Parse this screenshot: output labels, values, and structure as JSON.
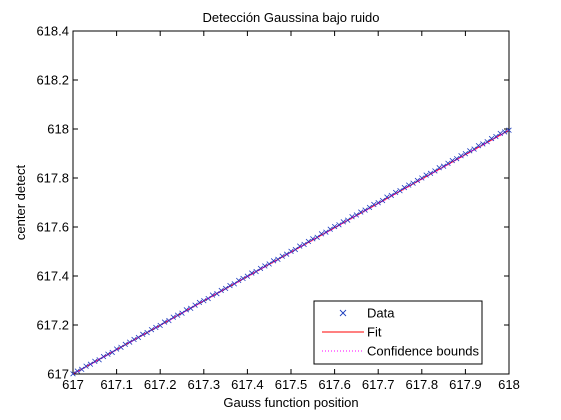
{
  "chart_data": {
    "type": "line",
    "title": "Detección Gaussina bajo ruido",
    "xlabel": "Gauss function position",
    "ylabel": "center detect",
    "xlim": [
      617,
      618
    ],
    "ylim": [
      617,
      618.4
    ],
    "xticks": [
      "617",
      "617.1",
      "617.2",
      "617.3",
      "617.4",
      "617.5",
      "617.6",
      "617.7",
      "617.8",
      "617.9",
      "618"
    ],
    "yticks": [
      "617",
      "617.2",
      "617.4",
      "617.6",
      "617.8",
      "618",
      "618.2",
      "618.4"
    ],
    "grid": false,
    "legend_position": "bottom-right",
    "series": [
      {
        "name": "Data",
        "kind": "markers",
        "marker": "x",
        "color": "#1f3fbf",
        "x": [
          617.0,
          617.01,
          617.02,
          617.03,
          617.04,
          617.05,
          617.06,
          617.07,
          617.08,
          617.09,
          617.1,
          617.11,
          617.12,
          617.13,
          617.14,
          617.15,
          617.16,
          617.17,
          617.18,
          617.19,
          617.2,
          617.21,
          617.22,
          617.23,
          617.24,
          617.25,
          617.26,
          617.27,
          617.28,
          617.29,
          617.3,
          617.31,
          617.32,
          617.33,
          617.34,
          617.35,
          617.36,
          617.37,
          617.38,
          617.39,
          617.4,
          617.41,
          617.42,
          617.43,
          617.44,
          617.45,
          617.46,
          617.47,
          617.48,
          617.49,
          617.5,
          617.51,
          617.52,
          617.53,
          617.54,
          617.55,
          617.56,
          617.57,
          617.58,
          617.59,
          617.6,
          617.61,
          617.62,
          617.63,
          617.64,
          617.65,
          617.66,
          617.67,
          617.68,
          617.69,
          617.7,
          617.71,
          617.72,
          617.73,
          617.74,
          617.75,
          617.76,
          617.77,
          617.78,
          617.79,
          617.8,
          617.81,
          617.82,
          617.83,
          617.84,
          617.85,
          617.86,
          617.87,
          617.88,
          617.89,
          617.9,
          617.91,
          617.92,
          617.93,
          617.94,
          617.95,
          617.96,
          617.97,
          617.98,
          617.99,
          618.0
        ],
        "y": [
          617.001,
          617.012,
          617.019,
          617.032,
          617.04,
          617.052,
          617.058,
          617.071,
          617.081,
          617.088,
          617.102,
          617.109,
          617.121,
          617.13,
          617.141,
          617.149,
          617.162,
          617.169,
          617.181,
          617.19,
          617.198,
          617.212,
          617.218,
          617.232,
          617.24,
          617.248,
          617.262,
          617.268,
          617.281,
          617.292,
          617.299,
          617.308,
          617.322,
          617.328,
          617.341,
          617.349,
          617.361,
          617.368,
          617.382,
          617.39,
          617.399,
          617.412,
          617.418,
          617.431,
          617.441,
          617.449,
          617.462,
          617.468,
          617.481,
          617.489,
          617.501,
          617.508,
          617.522,
          617.529,
          617.541,
          617.552,
          617.558,
          617.572,
          617.579,
          617.591,
          617.602,
          617.609,
          617.621,
          617.628,
          617.642,
          617.649,
          617.661,
          617.669,
          617.68,
          617.692,
          617.699,
          617.708,
          617.722,
          617.729,
          617.741,
          617.748,
          617.761,
          617.771,
          617.779,
          617.79,
          617.8,
          617.812,
          617.819,
          617.829,
          617.842,
          617.848,
          617.86,
          617.871,
          617.879,
          617.891,
          617.899,
          617.911,
          617.918,
          617.932,
          617.939,
          617.948,
          617.961,
          617.969,
          617.982,
          617.988,
          617.995
        ]
      },
      {
        "name": "Fit",
        "kind": "line",
        "color": "#ff0000",
        "x": [
          617,
          618
        ],
        "y": [
          617.0,
          617.995
        ]
      },
      {
        "name": "Confidence bounds",
        "kind": "dotted-line",
        "color": "#ff00ff",
        "x": [
          617,
          618
        ],
        "y": [
          617.0,
          617.995
        ]
      }
    ]
  }
}
